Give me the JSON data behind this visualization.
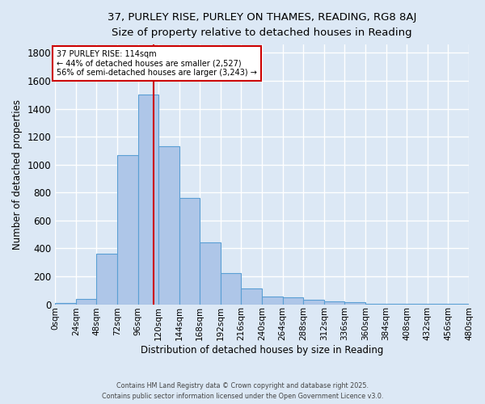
{
  "title_line1": "37, PURLEY RISE, PURLEY ON THAMES, READING, RG8 8AJ",
  "title_line2": "Size of property relative to detached houses in Reading",
  "xlabel": "Distribution of detached houses by size in Reading",
  "ylabel": "Number of detached properties",
  "bar_edges": [
    0,
    24,
    48,
    72,
    96,
    120,
    144,
    168,
    192,
    216,
    240,
    264,
    288,
    312,
    336,
    360,
    384,
    408,
    432,
    456,
    480
  ],
  "bar_heights": [
    10,
    35,
    360,
    1070,
    1500,
    1130,
    760,
    445,
    225,
    115,
    55,
    50,
    30,
    18,
    12,
    5,
    3,
    2,
    1,
    1
  ],
  "bar_color": "#aec6e8",
  "bar_edge_color": "#5a9fd4",
  "bg_color": "#dce8f5",
  "grid_color": "#ffffff",
  "property_line_x": 114,
  "property_label": "37 PURLEY RISE: 114sqm",
  "annotation_line1": "← 44% of detached houses are smaller (2,527)",
  "annotation_line2": "56% of semi-detached houses are larger (3,243) →",
  "box_color": "#ffffff",
  "box_edge_color": "#cc0000",
  "line_color": "#cc0000",
  "ylim": [
    0,
    1860
  ],
  "xlim": [
    0,
    480
  ],
  "ytick_positions": [
    0,
    200,
    400,
    600,
    800,
    1000,
    1200,
    1400,
    1600,
    1800
  ],
  "xtick_positions": [
    0,
    24,
    48,
    72,
    96,
    120,
    144,
    168,
    192,
    216,
    240,
    264,
    288,
    312,
    336,
    360,
    384,
    408,
    432,
    456,
    480
  ],
  "xtick_labels": [
    "0sqm",
    "24sqm",
    "48sqm",
    "72sqm",
    "96sqm",
    "120sqm",
    "144sqm",
    "168sqm",
    "192sqm",
    "216sqm",
    "240sqm",
    "264sqm",
    "288sqm",
    "312sqm",
    "336sqm",
    "360sqm",
    "384sqm",
    "408sqm",
    "432sqm",
    "456sqm",
    "480sqm"
  ],
  "footer_line1": "Contains HM Land Registry data © Crown copyright and database right 2025.",
  "footer_line2": "Contains public sector information licensed under the Open Government Licence v3.0."
}
